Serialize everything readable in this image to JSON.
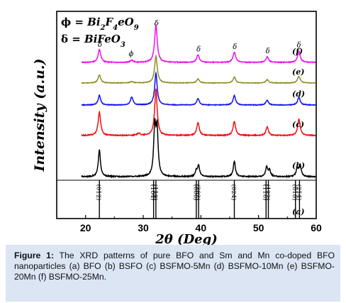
{
  "chart_data": {
    "type": "line",
    "ylabel": "Intensity (a.u.)",
    "xlabel": "2θ (Deg)",
    "xlim": [
      15,
      60
    ],
    "xticks": [
      "20",
      "30",
      "40",
      "50",
      "60"
    ],
    "legend": [
      {
        "symbol": "ϕ",
        "label": "Bi2F4eO9",
        "main": "Bi",
        "sub1": "2",
        "mid": "F",
        "sub2": "4",
        "end": "eO",
        "sub3": "9"
      },
      {
        "symbol": "δ",
        "label": "BiFeO3",
        "main": "BiFeO",
        "sub1": "3"
      }
    ],
    "series": [
      {
        "name": "(f)",
        "color": "#ee10ee",
        "peaks": [
          [
            22.4,
            0.35
          ],
          [
            28.0,
            0.06
          ],
          [
            32.2,
            1.0
          ],
          [
            39.5,
            0.2
          ],
          [
            45.8,
            0.28
          ],
          [
            51.5,
            0.15
          ],
          [
            57.0,
            0.3
          ]
        ],
        "annotations": [
          {
            "x": 22.5,
            "text": "δ"
          },
          {
            "x": 27.9,
            "text": "ϕ"
          },
          {
            "x": 32.3,
            "text": "δ"
          },
          {
            "x": 39.6,
            "text": "δ"
          },
          {
            "x": 45.9,
            "text": "δ"
          },
          {
            "x": 51.6,
            "text": "δ"
          },
          {
            "x": 57.0,
            "text": "δ"
          }
        ]
      },
      {
        "name": "(e)",
        "color": "#8e8e22",
        "peaks": [
          [
            22.4,
            0.3
          ],
          [
            28.0,
            0.06
          ],
          [
            32.2,
            1.0
          ],
          [
            39.5,
            0.15
          ],
          [
            45.8,
            0.22
          ],
          [
            51.5,
            0.12
          ],
          [
            57.0,
            0.25
          ]
        ],
        "annotations": []
      },
      {
        "name": "(d)",
        "color": "#1010ee",
        "peaks": [
          [
            22.4,
            0.3
          ],
          [
            28.0,
            0.25
          ],
          [
            32.2,
            1.0
          ],
          [
            39.5,
            0.2
          ],
          [
            45.8,
            0.3
          ],
          [
            51.5,
            0.15
          ],
          [
            57.0,
            0.25
          ]
        ],
        "annotations": []
      },
      {
        "name": "(c)",
        "color": "#ee1010",
        "peaks": [
          [
            22.4,
            0.5
          ],
          [
            29.2,
            0.05
          ],
          [
            32.2,
            1.0
          ],
          [
            39.5,
            0.28
          ],
          [
            45.8,
            0.3
          ],
          [
            51.5,
            0.18
          ],
          [
            57.0,
            0.35
          ]
        ],
        "annotations": []
      },
      {
        "name": "(b)",
        "color": "#000000",
        "peaks": [
          [
            22.4,
            0.52
          ],
          [
            32.0,
            0.9
          ],
          [
            32.4,
            0.85
          ],
          [
            39.2,
            0.1
          ],
          [
            39.6,
            0.2
          ],
          [
            45.8,
            0.3
          ],
          [
            51.4,
            0.18
          ],
          [
            51.9,
            0.12
          ],
          [
            56.7,
            0.15
          ],
          [
            57.2,
            0.22
          ]
        ],
        "annotations": []
      }
    ],
    "reference": {
      "name": "(a)",
      "lines": [
        {
          "x": 22.4,
          "label": "(012)"
        },
        {
          "x": 31.8,
          "label": "(104)"
        },
        {
          "x": 32.2,
          "label": "(110)"
        },
        {
          "x": 39.2,
          "label": "(006)"
        },
        {
          "x": 39.6,
          "label": "(202)"
        },
        {
          "x": 45.8,
          "label": "(024)"
        },
        {
          "x": 51.3,
          "label": "(116)"
        },
        {
          "x": 51.7,
          "label": "(122)"
        },
        {
          "x": 56.4,
          "label": "(018)"
        },
        {
          "x": 57.1,
          "label": "(214)"
        }
      ]
    }
  },
  "caption": {
    "label": "Figure 1:",
    "text": " The XRD patterns of pure BFO and Sm and Mn co-doped BFO nanoparticles (a) BFO (b) BSFO (c) BSFMO-5Mn (d) BSFMO-10Mn (e) BSFMO-20Mn (f) BSFMO-25Mn."
  }
}
